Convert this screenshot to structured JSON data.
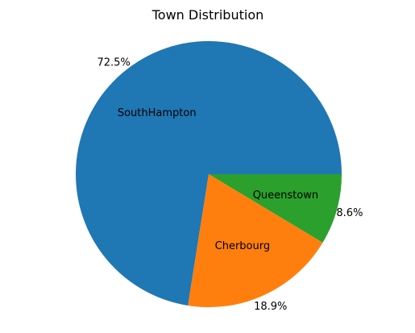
{
  "chart_data": {
    "type": "pie",
    "title": "Town Distribution",
    "slices": [
      {
        "label": "SouthHampton",
        "value": 72.5,
        "pct_label": "72.5%",
        "color": "#1f77b4"
      },
      {
        "label": "Cherbourg",
        "value": 18.9,
        "pct_label": "18.9%",
        "color": "#ff7f0e"
      },
      {
        "label": "Queenstown",
        "value": 8.6,
        "pct_label": "8.6%",
        "color": "#2ca02c"
      }
    ],
    "start_angle_deg": 0,
    "direction": "counterclockwise",
    "legend": "none"
  }
}
